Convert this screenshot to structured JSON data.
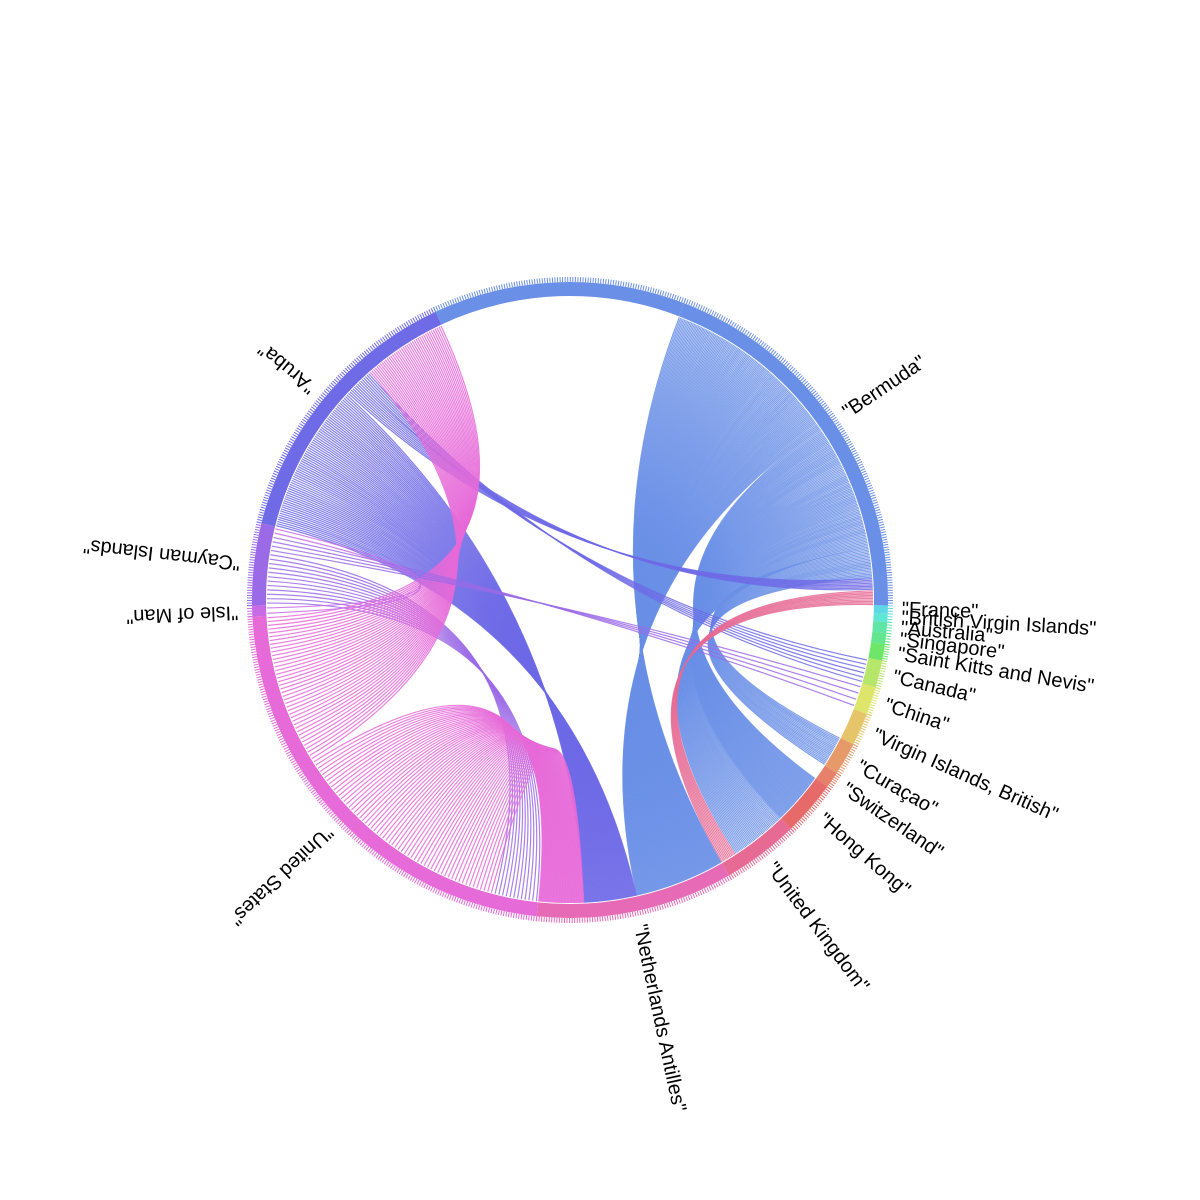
{
  "chart_data": {
    "type": "chord",
    "groups": [
      {
        "key": "bermuda",
        "label": "\"Bermuda\"",
        "start_deg": 21,
        "end_deg": 91,
        "color": "#6a8fe6"
      },
      {
        "key": "france",
        "label": "\"France\"",
        "start_deg": 91,
        "end_deg": 92.5,
        "color": "#5fd8e6"
      },
      {
        "key": "bvi",
        "label": "\"British Virgin Islands\"",
        "start_deg": 92.5,
        "end_deg": 94,
        "color": "#5fe6d4"
      },
      {
        "key": "australia",
        "label": "\"Australia\"",
        "start_deg": 94,
        "end_deg": 96,
        "color": "#5fe6a6"
      },
      {
        "key": "singapore",
        "label": "\"Singapore\"",
        "start_deg": 96,
        "end_deg": 98,
        "color": "#62e68e"
      },
      {
        "key": "stkitts",
        "label": "\"Saint Kitts and Nevis\"",
        "start_deg": 98,
        "end_deg": 101,
        "color": "#6ee66a"
      },
      {
        "key": "canada",
        "label": "\"Canada\"",
        "start_deg": 101,
        "end_deg": 106,
        "color": "#b6e66a"
      },
      {
        "key": "china",
        "label": "\"China\"",
        "start_deg": 106,
        "end_deg": 111,
        "color": "#dde66a"
      },
      {
        "key": "vi_british",
        "label": "\"Virgin Islands, British\"",
        "start_deg": 111,
        "end_deg": 117,
        "color": "#e6c46a"
      },
      {
        "key": "curacao",
        "label": "\"Curaçao\"",
        "start_deg": 117,
        "end_deg": 123,
        "color": "#e69a6a"
      },
      {
        "key": "switzerland",
        "label": "\"Switzerland\"",
        "start_deg": 123,
        "end_deg": 126,
        "color": "#e6806a"
      },
      {
        "key": "hongkong",
        "label": "\"Hong Kong\"",
        "start_deg": 126,
        "end_deg": 136,
        "color": "#e66a6a"
      },
      {
        "key": "uk",
        "label": "\"United Kingdom\"",
        "start_deg": 136,
        "end_deg": 150,
        "color": "#e66a94"
      },
      {
        "key": "netherlands",
        "label": "\"Netherlands Antilles\"",
        "start_deg": 150,
        "end_deg": 186,
        "color": "#e66ab6"
      },
      {
        "key": "us",
        "label": "\"United States\"",
        "start_deg": 186,
        "end_deg": 267,
        "color": "#e66ad8"
      },
      {
        "key": "isleofman",
        "label": "\"Isle of Man\"",
        "start_deg": 267,
        "end_deg": 269,
        "color": "#c96ae6"
      },
      {
        "key": "cayman",
        "label": "\"Cayman Islands\"",
        "start_deg": 269,
        "end_deg": 284,
        "color": "#9b6ae6"
      },
      {
        "key": "aruba",
        "label": "\"Aruba\"",
        "start_deg": 284,
        "end_deg": 335,
        "color": "#6f6ae6"
      },
      {
        "key": "bermuda2",
        "label": "",
        "start_deg": 335,
        "end_deg": 381,
        "color": "#6a8fe6"
      }
    ],
    "flows": [
      {
        "from": "bermuda",
        "to": "netherlands",
        "count": 120
      },
      {
        "from": "bermuda",
        "to": "hongkong",
        "count": 50
      },
      {
        "from": "bermuda",
        "to": "uk",
        "count": 35
      },
      {
        "from": "bermuda",
        "to": "curacao",
        "count": 20
      },
      {
        "from": "aruba",
        "to": "netherlands",
        "count": 70
      },
      {
        "from": "aruba",
        "to": "bermuda",
        "count": 8
      },
      {
        "from": "aruba",
        "to": "canada",
        "count": 6
      },
      {
        "from": "cayman",
        "to": "us",
        "count": 12
      },
      {
        "from": "us",
        "to": "netherlands",
        "count": 60
      },
      {
        "from": "us",
        "to": "aruba",
        "count": 40
      },
      {
        "from": "cayman",
        "to": "china",
        "count": 4
      },
      {
        "from": "isleofman",
        "to": "cayman",
        "count": 2
      },
      {
        "from": "uk",
        "to": "bermuda",
        "count": 10
      }
    ]
  }
}
